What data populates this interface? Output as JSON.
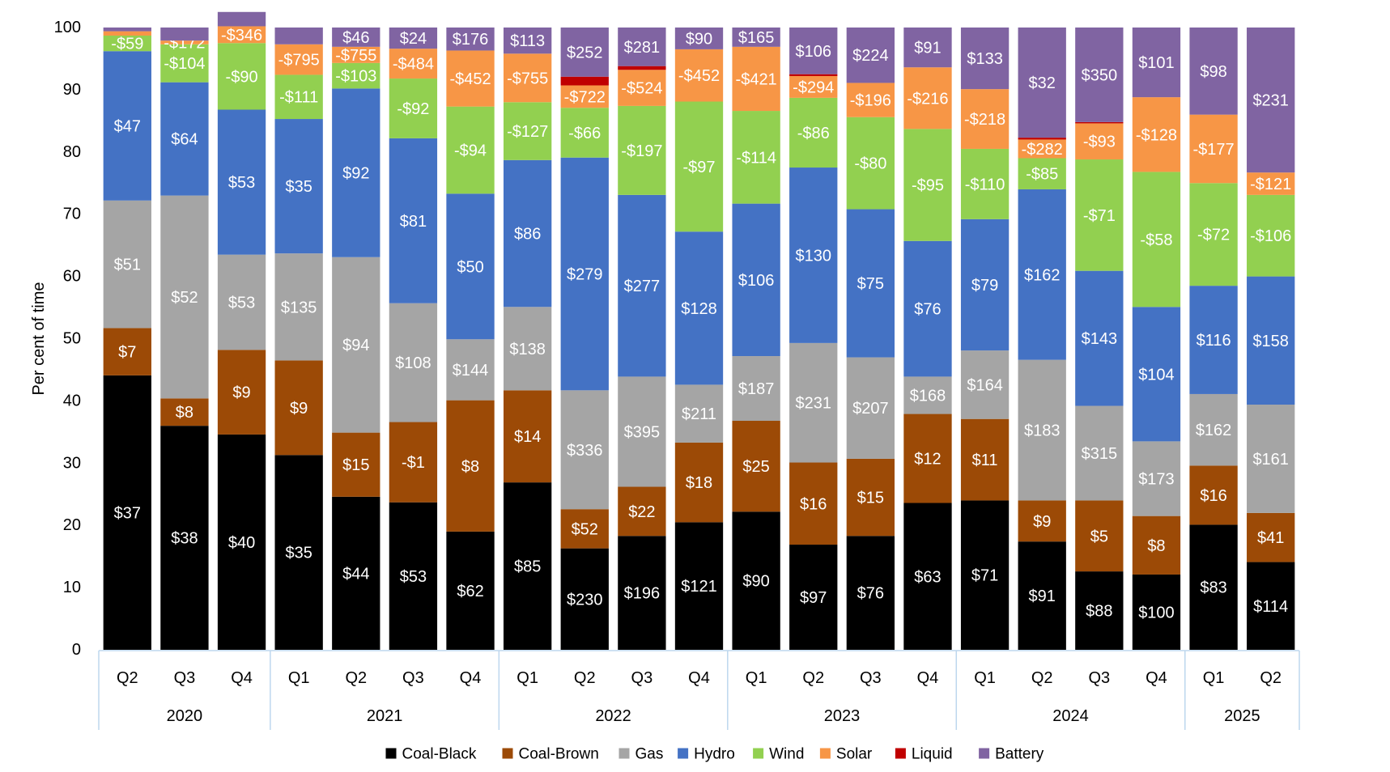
{
  "chart_data": {
    "type": "bar",
    "stacked": true,
    "title": "",
    "xlabel": "",
    "ylabel": "Per cent of time",
    "ylim": [
      0,
      100
    ],
    "yticks": [
      0,
      10,
      20,
      30,
      40,
      50,
      60,
      70,
      80,
      90,
      100
    ],
    "legend_position": "bottom",
    "series": [
      {
        "name": "Coal-Black",
        "color": "#000000",
        "label_color": "#ffffff"
      },
      {
        "name": "Coal-Brown",
        "color": "#9c4a06",
        "label_color": "#ffffff"
      },
      {
        "name": "Gas",
        "color": "#a5a5a5",
        "label_color": "#ffffff"
      },
      {
        "name": "Hydro",
        "color": "#4472c4",
        "label_color": "#ffffff"
      },
      {
        "name": "Wind",
        "color": "#92d050",
        "label_color": "#ffffff"
      },
      {
        "name": "Solar",
        "color": "#f79646",
        "label_color": "#ffffff"
      },
      {
        "name": "Liquid",
        "color": "#c00000",
        "label_color": "#ffffff"
      },
      {
        "name": "Battery",
        "color": "#8064a2",
        "label_color": "#ffffff"
      }
    ],
    "years": [
      {
        "label": "2020",
        "quarters": 3
      },
      {
        "label": "2021",
        "quarters": 4
      },
      {
        "label": "2022",
        "quarters": 4
      },
      {
        "label": "2023",
        "quarters": 4
      },
      {
        "label": "2024",
        "quarters": 4
      },
      {
        "label": "2025",
        "quarters": 2
      }
    ],
    "bars": [
      {
        "quarter": "Q2",
        "values": [
          44.1,
          7.6,
          20.5,
          24.0,
          2.5,
          0.7,
          0,
          0.6
        ],
        "labels": [
          "$37",
          "$7",
          "$51",
          "$47",
          "-$59",
          "",
          "",
          ""
        ]
      },
      {
        "quarter": "Q3",
        "values": [
          36.0,
          4.4,
          32.6,
          18.2,
          6.1,
          0.6,
          0,
          2.1
        ],
        "labels": [
          "$38",
          "$8",
          "$52",
          "$64",
          "-$104",
          "-$172",
          "",
          ""
        ]
      },
      {
        "quarter": "Q4",
        "values": [
          34.6,
          13.6,
          15.3,
          23.3,
          10.7,
          2.7,
          0,
          2.3
        ],
        "labels": [
          "$40",
          "$9",
          "$53",
          "$53",
          "-$90",
          "-$346",
          "",
          ""
        ]
      },
      {
        "quarter": "Q1",
        "values": [
          31.3,
          15.2,
          17.2,
          21.6,
          7.1,
          4.9,
          0,
          2.7
        ],
        "labels": [
          "$35",
          "$9",
          "$135",
          "$35",
          "-$111",
          "-$795",
          "",
          ""
        ]
      },
      {
        "quarter": "Q2",
        "values": [
          24.6,
          10.3,
          28.2,
          27.1,
          4.1,
          2.6,
          0,
          3.1
        ],
        "labels": [
          "$44",
          "$15",
          "$94",
          "$92",
          "-$103",
          "-$755",
          "",
          "$46"
        ]
      },
      {
        "quarter": "Q3",
        "values": [
          23.7,
          12.9,
          19.1,
          26.5,
          9.6,
          4.8,
          0,
          3.4
        ],
        "labels": [
          "$53",
          "-$1",
          "$108",
          "$81",
          "-$92",
          "-$484",
          "",
          "$24"
        ]
      },
      {
        "quarter": "Q4",
        "values": [
          19.0,
          21.1,
          9.8,
          23.4,
          14.0,
          9.0,
          0,
          3.7
        ],
        "labels": [
          "$62",
          "$8",
          "$144",
          "$50",
          "-$94",
          "-$452",
          "",
          "$176"
        ]
      },
      {
        "quarter": "Q1",
        "values": [
          26.9,
          14.8,
          13.4,
          23.6,
          9.3,
          7.8,
          0,
          4.2
        ],
        "labels": [
          "$85",
          "$14",
          "$138",
          "$86",
          "-$127",
          "-$755",
          "",
          "$113"
        ]
      },
      {
        "quarter": "Q2",
        "values": [
          16.3,
          6.3,
          19.1,
          37.4,
          8.0,
          3.6,
          1.4,
          7.9
        ],
        "labels": [
          "$230",
          "$52",
          "$336",
          "$279",
          "-$66",
          "-$722",
          "",
          "$252"
        ]
      },
      {
        "quarter": "Q3",
        "values": [
          18.3,
          7.9,
          17.7,
          29.2,
          14.3,
          5.8,
          0.6,
          6.2
        ],
        "labels": [
          "$196",
          "$22",
          "$395",
          "$277",
          "-$197",
          "-$524",
          "",
          "$281"
        ]
      },
      {
        "quarter": "Q4",
        "values": [
          20.5,
          12.8,
          9.3,
          24.6,
          20.9,
          8.4,
          0,
          3.5
        ],
        "labels": [
          "$121",
          "$18",
          "$211",
          "$128",
          "-$97",
          "-$452",
          "",
          "$90"
        ]
      },
      {
        "quarter": "Q1",
        "values": [
          22.2,
          14.6,
          10.4,
          24.5,
          14.9,
          10.3,
          0,
          3.1
        ],
        "labels": [
          "$90",
          "$25",
          "$187",
          "$106",
          "-$114",
          "-$421",
          "",
          "$165"
        ]
      },
      {
        "quarter": "Q2",
        "values": [
          16.9,
          13.2,
          19.2,
          28.2,
          11.2,
          3.5,
          0.3,
          7.5
        ],
        "labels": [
          "$97",
          "$16",
          "$231",
          "$130",
          "-$86",
          "-$294",
          "",
          "$106"
        ]
      },
      {
        "quarter": "Q3",
        "values": [
          18.3,
          12.4,
          16.3,
          23.8,
          14.8,
          5.5,
          0,
          8.9
        ],
        "labels": [
          "$76",
          "$15",
          "$207",
          "$75",
          "-$80",
          "-$196",
          "",
          "$224"
        ]
      },
      {
        "quarter": "Q4",
        "values": [
          23.6,
          14.3,
          6.0,
          21.8,
          18.0,
          9.9,
          0,
          6.4
        ],
        "labels": [
          "$63",
          "$12",
          "$168",
          "$76",
          "-$95",
          "-$216",
          "",
          "$91"
        ]
      },
      {
        "quarter": "Q1",
        "values": [
          24.0,
          13.1,
          11.0,
          21.1,
          11.3,
          9.6,
          0,
          9.9
        ],
        "labels": [
          "$71",
          "$11",
          "$164",
          "$79",
          "-$110",
          "-$218",
          "",
          "$133"
        ]
      },
      {
        "quarter": "Q2",
        "values": [
          17.4,
          6.6,
          22.6,
          27.4,
          5.0,
          3.0,
          0.3,
          17.7
        ],
        "labels": [
          "$91",
          "$9",
          "$183",
          "$162",
          "-$85",
          "-$282",
          "",
          "$32"
        ]
      },
      {
        "quarter": "Q3",
        "values": [
          12.6,
          11.4,
          15.2,
          21.7,
          17.9,
          5.8,
          0.2,
          15.2
        ],
        "labels": [
          "$88",
          "$5",
          "$315",
          "$143",
          "-$71",
          "-$93",
          "",
          "$350"
        ]
      },
      {
        "quarter": "Q4",
        "values": [
          12.1,
          9.4,
          12.0,
          21.6,
          21.7,
          12.0,
          0,
          11.2
        ],
        "labels": [
          "$100",
          "$8",
          "$173",
          "$104",
          "-$58",
          "-$128",
          "",
          "$101"
        ]
      },
      {
        "quarter": "Q1",
        "values": [
          20.1,
          9.5,
          11.5,
          17.4,
          16.5,
          11.0,
          0,
          14.0
        ],
        "labels": [
          "$83",
          "$16",
          "$162",
          "$116",
          "-$72",
          "-$177",
          "",
          "$98"
        ]
      },
      {
        "quarter": "Q2",
        "values": [
          14.1,
          7.9,
          17.4,
          20.6,
          13.1,
          3.6,
          0,
          23.3
        ],
        "labels": [
          "$114",
          "$41",
          "$161",
          "$158",
          "-$106",
          "-$121",
          "",
          "$231"
        ]
      }
    ]
  }
}
